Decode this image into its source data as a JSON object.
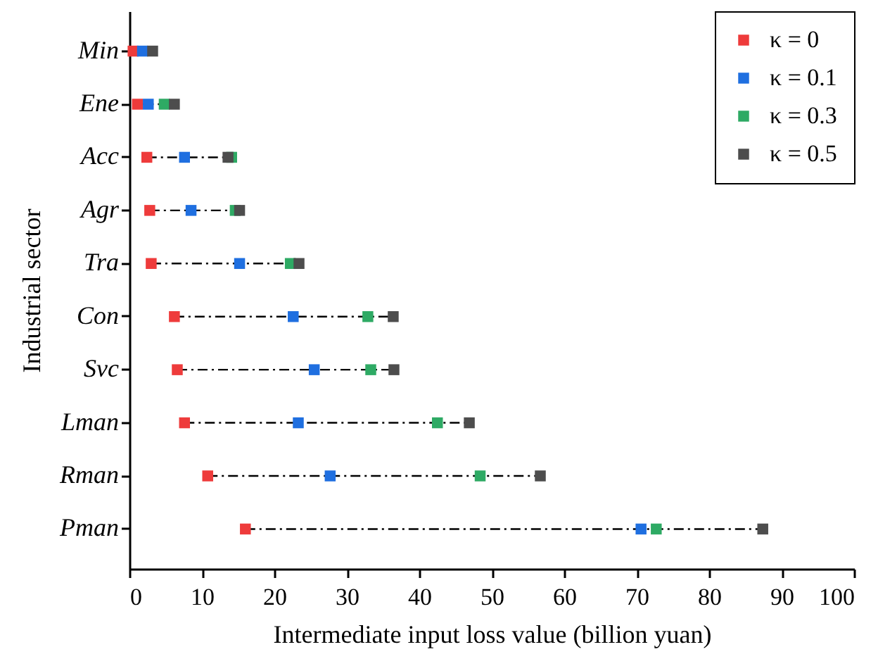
{
  "chart_data": {
    "type": "scatter",
    "xlabel": "Intermediate input loss value (billion yuan)",
    "ylabel": "Industrial sector",
    "categories": [
      "Min",
      "Ene",
      "Acc",
      "Agr",
      "Tra",
      "Con",
      "Svc",
      "Lman",
      "Rman",
      "Pman"
    ],
    "orientation": "horizontal",
    "xlim": [
      0,
      100
    ],
    "xticks": [
      0,
      10,
      20,
      30,
      40,
      50,
      60,
      70,
      80,
      90,
      100
    ],
    "series": [
      {
        "name": "κ = 0",
        "color": "#ee3b3b",
        "values": [
          0.5,
          1.1,
          2.4,
          2.8,
          3.0,
          6.2,
          6.6,
          7.6,
          10.8,
          16.0
        ]
      },
      {
        "name": "κ = 0.1",
        "color": "#1f6fe0",
        "values": [
          1.8,
          2.6,
          7.6,
          8.5,
          15.2,
          22.6,
          25.5,
          23.3,
          27.7,
          70.6
        ]
      },
      {
        "name": "κ = 0.3",
        "color": "#2eaa64",
        "values": [
          null,
          4.8,
          14.1,
          14.6,
          22.2,
          32.9,
          33.3,
          42.5,
          48.4,
          72.7
        ]
      },
      {
        "name": "κ = 0.5",
        "color": "#4d4d4d",
        "values": [
          3.2,
          6.2,
          13.6,
          15.2,
          23.4,
          36.4,
          36.5,
          46.9,
          56.7,
          87.4
        ]
      }
    ],
    "marker": "square",
    "line_style": "dashed",
    "legend": "top right",
    "grid": false
  }
}
